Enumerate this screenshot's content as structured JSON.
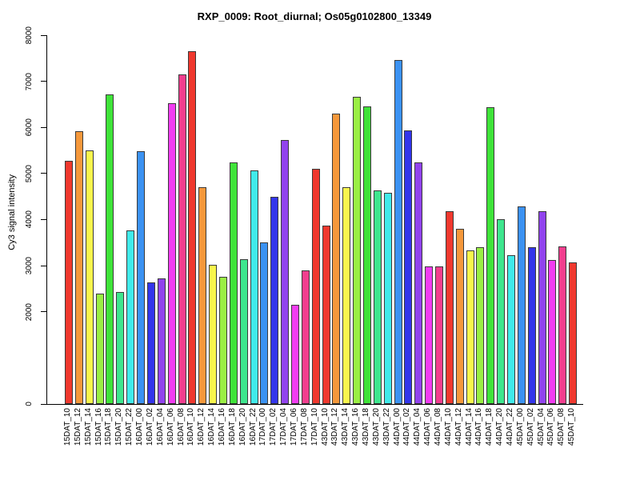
{
  "figure": {
    "background": "#FFFFFF"
  },
  "chart_data": {
    "type": "bar",
    "title": "RXP_0009: Root_diurnal; Os05g0102800_13349",
    "xlabel": "",
    "ylabel": "Cy3 signal intensity",
    "ylim": [
      0,
      8000
    ],
    "yticks": [
      0,
      2000,
      3000,
      4000,
      5000,
      6000,
      7000,
      8000
    ],
    "grid": false,
    "legend": "none",
    "axis_color": "#000000",
    "bar_border_color": "#3A3A3A",
    "palette_by_time": {
      "10": "#F0382E",
      "12": "#F5983B",
      "14": "#F9F64C",
      "16": "#9AEE44",
      "18": "#3FE339",
      "20": "#3EE68E",
      "22": "#40EAEA",
      "00": "#3B92F2",
      "02": "#3335EB",
      "04": "#9143EE",
      "06": "#F23CF2",
      "08": "#F23E8E"
    },
    "categories": [
      "15DAT_10",
      "15DAT_12",
      "15DAT_14",
      "15DAT_16",
      "15DAT_18",
      "15DAT_20",
      "15DAT_22",
      "16DAT_00",
      "16DAT_02",
      "16DAT_04",
      "16DAT_06",
      "16DAT_08",
      "16DAT_10",
      "16DAT_12",
      "16DAT_14",
      "16DAT_16",
      "16DAT_18",
      "16DAT_20",
      "16DAT_22",
      "17DAT_00",
      "17DAT_02",
      "17DAT_04",
      "17DAT_06",
      "17DAT_08",
      "17DAT_10",
      "43DAT_10",
      "43DAT_12",
      "43DAT_14",
      "43DAT_16",
      "43DAT_18",
      "43DAT_20",
      "43DAT_22",
      "44DAT_00",
      "44DAT_02",
      "44DAT_04",
      "44DAT_06",
      "44DAT_08",
      "44DAT_10",
      "44DAT_12",
      "44DAT_14",
      "44DAT_16",
      "44DAT_18",
      "44DAT_20",
      "44DAT_22",
      "45DAT_00",
      "45DAT_02",
      "45DAT_04",
      "45DAT_06",
      "45DAT_08",
      "45DAT_10"
    ],
    "values": [
      5270,
      5920,
      5500,
      2390,
      6710,
      2430,
      3770,
      5480,
      2640,
      2720,
      6520,
      7150,
      7650,
      4700,
      3020,
      2760,
      5240,
      3140,
      5070,
      3500,
      4490,
      5730,
      2150,
      2900,
      5100,
      3870,
      6300,
      4700,
      6660,
      6450,
      4630,
      4580,
      7460,
      5930,
      5240,
      2980,
      2990,
      4180,
      3800,
      3330,
      3400,
      6440,
      4010,
      3230,
      4290,
      3400,
      4180,
      3120,
      3420,
      3070
    ],
    "colors": [
      "#F0382E",
      "#F5983B",
      "#F9F64C",
      "#9AEE44",
      "#3FE339",
      "#3EE68E",
      "#40EAEA",
      "#3B92F2",
      "#3335EB",
      "#9143EE",
      "#F23CF2",
      "#F23E8E",
      "#F0382E",
      "#F5983B",
      "#F9F64C",
      "#9AEE44",
      "#3FE339",
      "#3EE68E",
      "#40EAEA",
      "#3B92F2",
      "#3335EB",
      "#9143EE",
      "#F23CF2",
      "#F23E8E",
      "#F0382E",
      "#F0382E",
      "#F5983B",
      "#F9F64C",
      "#9AEE44",
      "#3FE339",
      "#3EE68E",
      "#40EAEA",
      "#3B92F2",
      "#3335EB",
      "#9143EE",
      "#F23CF2",
      "#F23E8E",
      "#F0382E",
      "#F5983B",
      "#F9F64C",
      "#9AEE44",
      "#3FE339",
      "#3EE68E",
      "#40EAEA",
      "#3B92F2",
      "#3335EB",
      "#9143EE",
      "#F23CF2",
      "#F23E8E",
      "#F0382E"
    ]
  }
}
